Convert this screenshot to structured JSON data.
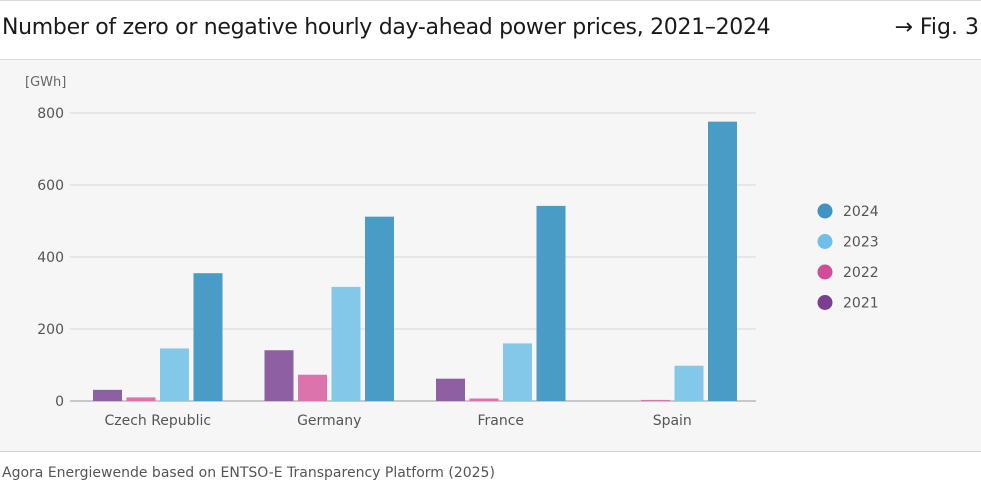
{
  "header": {
    "title": "Number of zero or negative hourly day-ahead power prices, 2021–2024",
    "figure_ref": "→ Fig. 3"
  },
  "footer": {
    "source": "Agora Energiewende based on ENTSO-E Transparency Platform (2025)"
  },
  "colors": {
    "2021": "#8e5fa2",
    "2022": "#dc73ad",
    "2023": "#84c8e9",
    "2024": "#489cc5",
    "legend_2021": "#7a3f8f",
    "legend_2022": "#d24d98",
    "legend_2023": "#6fbfe8",
    "legend_2024": "#3f94c4"
  },
  "chart_data": {
    "type": "bar",
    "title": "Number of zero or negative hourly day-ahead power prices, 2021–2024",
    "ylabel": "[GWh]",
    "xlabel": "",
    "ylim": [
      0,
      800
    ],
    "yticks": [
      0,
      200,
      400,
      600,
      800
    ],
    "grid": true,
    "legend_position": "right",
    "categories": [
      "Czech Republic",
      "Germany",
      "France",
      "Spain"
    ],
    "series": [
      {
        "name": "2021",
        "values": [
          31,
          141,
          62,
          0
        ]
      },
      {
        "name": "2022",
        "values": [
          10,
          73,
          7,
          3
        ]
      },
      {
        "name": "2023",
        "values": [
          146,
          317,
          160,
          98
        ]
      },
      {
        "name": "2024",
        "values": [
          355,
          512,
          542,
          776
        ]
      }
    ],
    "legend_order": [
      "2024",
      "2023",
      "2022",
      "2021"
    ]
  }
}
